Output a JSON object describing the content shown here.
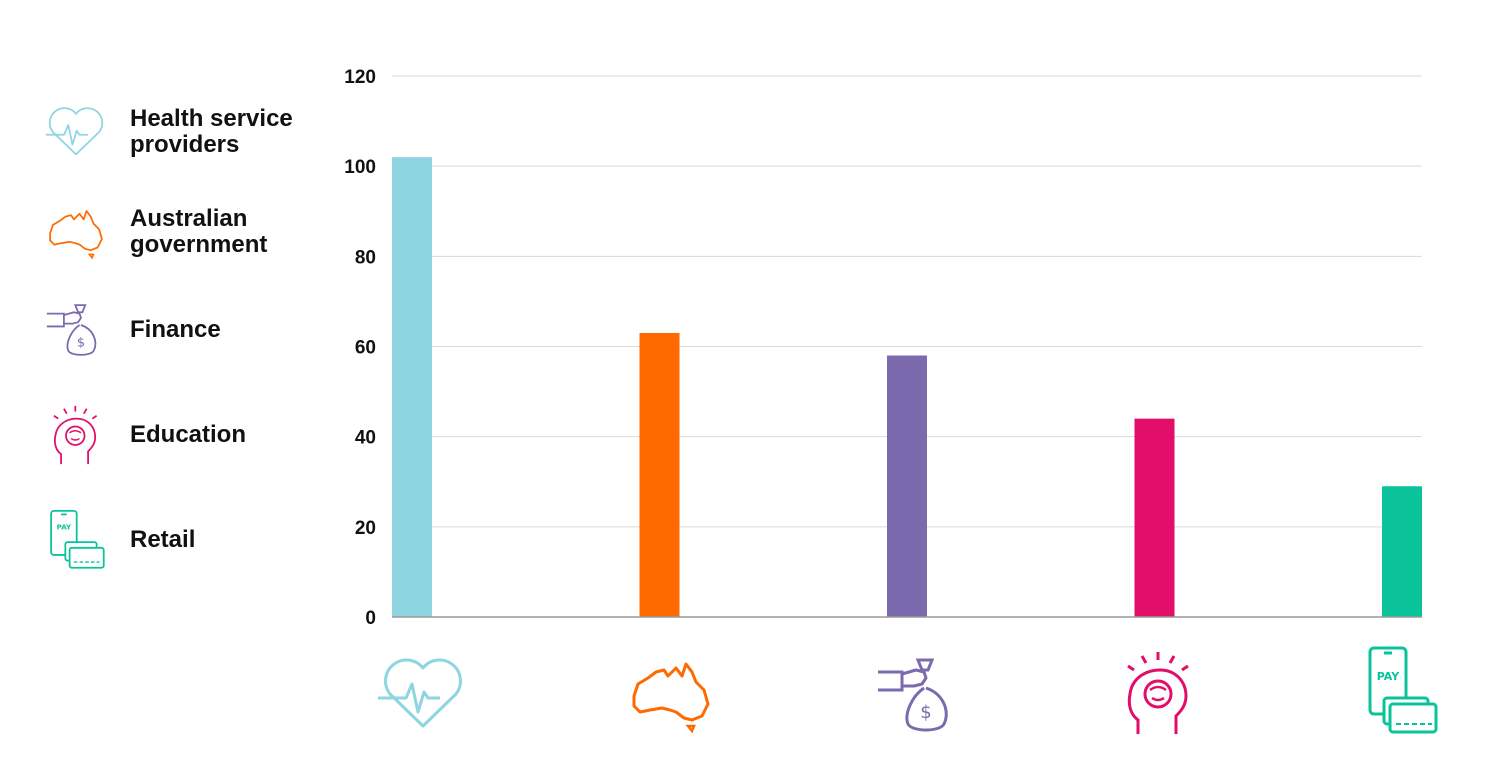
{
  "legend": [
    {
      "label": "Health service providers",
      "icon": "heart-pulse-icon",
      "color": "#8dd5e0"
    },
    {
      "label": "Australian government",
      "icon": "australia-map-icon",
      "color": "#ff6a00"
    },
    {
      "label": "Finance",
      "icon": "money-bag-hand-icon",
      "color": "#7b6aad"
    },
    {
      "label": "Education",
      "icon": "brain-head-icon",
      "color": "#e30d6a"
    },
    {
      "label": "Retail",
      "icon": "phone-pay-card-icon",
      "color": "#0bc39a"
    }
  ],
  "chart_data": {
    "type": "bar",
    "categories": [
      "Health service providers",
      "Australian government",
      "Finance",
      "Education",
      "Retail"
    ],
    "values": [
      102,
      63,
      58,
      44,
      29
    ],
    "colors": [
      "#8dd5e0",
      "#ff6a00",
      "#7b6aad",
      "#e30d6a",
      "#0bc39a"
    ],
    "yticks": [
      0,
      20,
      40,
      60,
      80,
      100,
      120
    ],
    "ylim": [
      0,
      120
    ],
    "grid": true,
    "legend_position": "left",
    "title": "",
    "xlabel": "",
    "ylabel": "",
    "x_tick_icons": [
      "heart-pulse-icon",
      "australia-map-icon",
      "money-bag-hand-icon",
      "brain-head-icon",
      "phone-pay-card-icon"
    ],
    "phone_text": "PAY"
  }
}
